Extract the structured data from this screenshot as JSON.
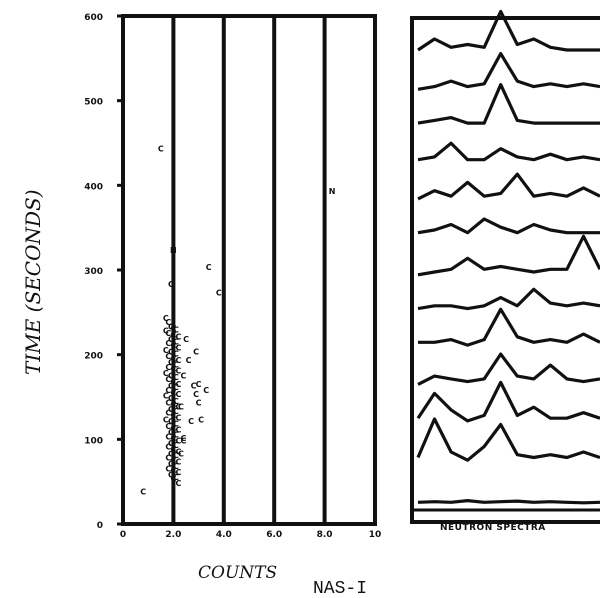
{
  "figure_label": "NAS-I",
  "chart_data": [
    {
      "type": "scatter",
      "title": "",
      "xlabel": "COUNTS",
      "ylabel": "TIME (SECONDS)",
      "xlim": [
        0,
        100
      ],
      "ylim": [
        0,
        600
      ],
      "x_ticks": [
        "0",
        "2.0",
        "4.0",
        "6.0",
        "8.0",
        "10"
      ],
      "y_ticks": [
        "0",
        "100",
        "200",
        "300",
        "400",
        "500",
        "600"
      ],
      "grid": "vertical",
      "point_markers": [
        "C",
        "N"
      ],
      "series": [
        {
          "name": "C",
          "points": [
            [
              8,
              35
            ],
            [
              17,
              240
            ],
            [
              18,
              235
            ],
            [
              19,
              230
            ],
            [
              20,
              228
            ],
            [
              21,
              226
            ],
            [
              17,
              225
            ],
            [
              18,
              222
            ],
            [
              20,
              220
            ],
            [
              22,
              218
            ],
            [
              19,
              215
            ],
            [
              21,
              212
            ],
            [
              18,
              210
            ],
            [
              20,
              208
            ],
            [
              22,
              205
            ],
            [
              17,
              202
            ],
            [
              19,
              200
            ],
            [
              21,
              198
            ],
            [
              18,
              195
            ],
            [
              20,
              192
            ],
            [
              22,
              190
            ],
            [
              19,
              188
            ],
            [
              21,
              185
            ],
            [
              18,
              182
            ],
            [
              20,
              180
            ],
            [
              22,
              178
            ],
            [
              17,
              175
            ],
            [
              19,
              172
            ],
            [
              21,
              170
            ],
            [
              18,
              168
            ],
            [
              20,
              165
            ],
            [
              22,
              162
            ],
            [
              19,
              160
            ],
            [
              21,
              158
            ],
            [
              18,
              155
            ],
            [
              20,
              152
            ],
            [
              22,
              150
            ],
            [
              17,
              148
            ],
            [
              19,
              145
            ],
            [
              21,
              142
            ],
            [
              18,
              140
            ],
            [
              20,
              138
            ],
            [
              22,
              135
            ],
            [
              19,
              132
            ],
            [
              21,
              130
            ],
            [
              18,
              128
            ],
            [
              20,
              125
            ],
            [
              22,
              122
            ],
            [
              17,
              120
            ],
            [
              19,
              118
            ],
            [
              21,
              115
            ],
            [
              18,
              112
            ],
            [
              20,
              110
            ],
            [
              22,
              108
            ],
            [
              19,
              105
            ],
            [
              21,
              102
            ],
            [
              18,
              100
            ],
            [
              20,
              98
            ],
            [
              22,
              95
            ],
            [
              19,
              92
            ],
            [
              21,
              90
            ],
            [
              18,
              88
            ],
            [
              20,
              85
            ],
            [
              22,
              82
            ],
            [
              19,
              80
            ],
            [
              21,
              78
            ],
            [
              18,
              75
            ],
            [
              20,
              72
            ],
            [
              22,
              70
            ],
            [
              19,
              68
            ],
            [
              21,
              65
            ],
            [
              18,
              62
            ],
            [
              20,
              60
            ],
            [
              22,
              58
            ],
            [
              19,
              55
            ],
            [
              21,
              52
            ],
            [
              20,
              50
            ],
            [
              22,
              45
            ],
            [
              25,
              215
            ],
            [
              26,
              190
            ],
            [
              28,
              160
            ],
            [
              29,
              150
            ],
            [
              31,
              120
            ],
            [
              33,
              155
            ],
            [
              30,
              162
            ],
            [
              27,
              118
            ],
            [
              24,
              98
            ],
            [
              23,
              80
            ],
            [
              23,
              135
            ],
            [
              24,
              172
            ],
            [
              30,
              140
            ],
            [
              34,
              300
            ],
            [
              38,
              270
            ],
            [
              29,
              200
            ],
            [
              19,
              280
            ],
            [
              24,
              95
            ],
            [
              15,
              440
            ]
          ]
        },
        {
          "name": "N",
          "points": [
            [
              83,
              390
            ],
            [
              20,
              320
            ]
          ]
        }
      ]
    },
    {
      "type": "line",
      "title": "",
      "xlabel": "NEUTRON SPECTRA",
      "ylabel": "",
      "y_ticks": [],
      "spectra_count": 13,
      "series": [
        {
          "name": "",
          "values": [
            0.05,
            0.06,
            0.05,
            0.08,
            0.05,
            0.06,
            0.07,
            0.05,
            0.06,
            0.05,
            0.04,
            0.05
          ]
        },
        {
          "name": "",
          "values": [
            0.2,
            0.9,
            0.3,
            0.15,
            0.4,
            0.8,
            0.25,
            0.2,
            0.25,
            0.2,
            0.3,
            0.2
          ]
        },
        {
          "name": "",
          "values": [
            0.25,
            0.7,
            0.4,
            0.2,
            0.3,
            0.9,
            0.3,
            0.45,
            0.25,
            0.25,
            0.35,
            0.25
          ]
        },
        {
          "name": "",
          "values": [
            0.2,
            0.35,
            0.3,
            0.25,
            0.3,
            0.75,
            0.35,
            0.3,
            0.55,
            0.3,
            0.25,
            0.3
          ]
        },
        {
          "name": "",
          "values": [
            0.3,
            0.3,
            0.35,
            0.25,
            0.35,
            0.9,
            0.4,
            0.3,
            0.35,
            0.3,
            0.45,
            0.3
          ]
        },
        {
          "name": "",
          "values": [
            0.25,
            0.3,
            0.3,
            0.25,
            0.3,
            0.45,
            0.3,
            0.6,
            0.35,
            0.3,
            0.35,
            0.3
          ]
        },
        {
          "name": "",
          "values": [
            0.2,
            0.25,
            0.3,
            0.5,
            0.3,
            0.35,
            0.3,
            0.25,
            0.3,
            0.3,
            0.9,
            0.3
          ]
        },
        {
          "name": "",
          "values": [
            0.3,
            0.35,
            0.45,
            0.3,
            0.55,
            0.4,
            0.3,
            0.45,
            0.35,
            0.3,
            0.3,
            0.3
          ]
        },
        {
          "name": "",
          "values": [
            0.25,
            0.4,
            0.3,
            0.55,
            0.3,
            0.35,
            0.7,
            0.3,
            0.35,
            0.3,
            0.45,
            0.3
          ]
        },
        {
          "name": "",
          "values": [
            0.3,
            0.35,
            0.6,
            0.3,
            0.3,
            0.5,
            0.35,
            0.3,
            0.4,
            0.3,
            0.35,
            0.3
          ]
        },
        {
          "name": "",
          "values": [
            0.3,
            0.35,
            0.4,
            0.3,
            0.3,
            1.0,
            0.35,
            0.3,
            0.3,
            0.3,
            0.3,
            0.3
          ]
        },
        {
          "name": "",
          "values": [
            0.25,
            0.3,
            0.4,
            0.3,
            0.35,
            0.9,
            0.4,
            0.3,
            0.35,
            0.3,
            0.35,
            0.3
          ]
        },
        {
          "name": "",
          "values": [
            0.3,
            0.5,
            0.35,
            0.4,
            0.35,
            1.0,
            0.4,
            0.5,
            0.35,
            0.3,
            0.3,
            0.3
          ]
        }
      ]
    }
  ]
}
